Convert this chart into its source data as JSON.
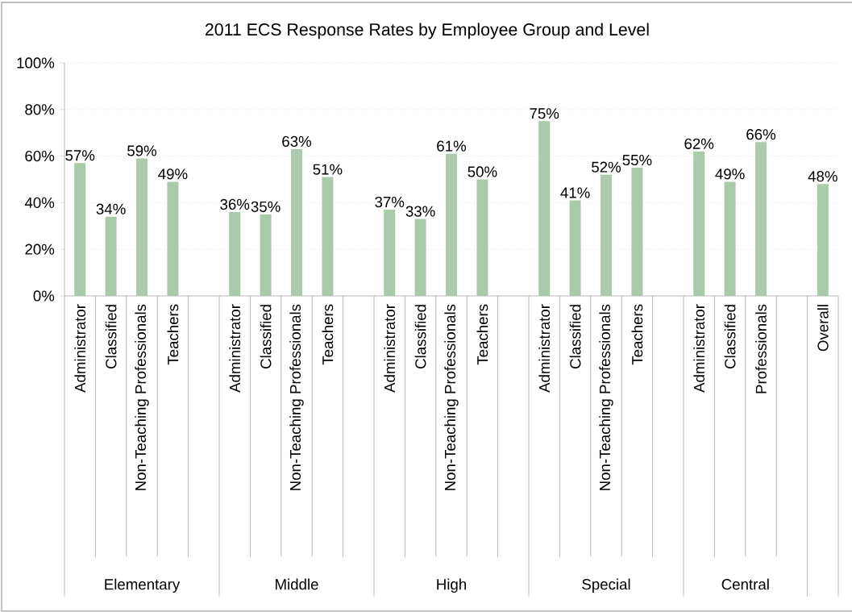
{
  "chart_data": {
    "type": "bar",
    "title": "2011 ECS Response Rates by Employee Group and Level",
    "categories": [
      "Administrator",
      "Classified",
      "Non-Teaching Professionals",
      "Teachers",
      null,
      "Administrator",
      "Classified",
      "Non-Teaching Professionals",
      "Teachers",
      null,
      "Administrator",
      "Classified",
      "Non-Teaching Professionals",
      "Teachers",
      null,
      "Administrator",
      "Classified",
      "Non-Teaching Professionals",
      "Teachers",
      null,
      "Administrator",
      "Classified",
      "Professionals",
      null,
      "Overall"
    ],
    "values": [
      57,
      34,
      59,
      49,
      null,
      36,
      35,
      63,
      51,
      null,
      37,
      33,
      61,
      50,
      null,
      75,
      41,
      52,
      55,
      null,
      62,
      49,
      66,
      null,
      48
    ],
    "value_labels": [
      "57%",
      "34%",
      "59%",
      "49%",
      null,
      "36%",
      "35%",
      "63%",
      "51%",
      null,
      "37%",
      "33%",
      "61%",
      "50%",
      null,
      "75%",
      "41%",
      "52%",
      "55%",
      null,
      "62%",
      "49%",
      "66%",
      null,
      "48%"
    ],
    "color": "#a9cba9",
    "ylim": [
      0,
      100
    ],
    "yticks": [
      {
        "value": 0,
        "label": "0%"
      },
      {
        "value": 20,
        "label": "20%"
      },
      {
        "value": 40,
        "label": "40%"
      },
      {
        "value": 60,
        "label": "60%"
      },
      {
        "value": 80,
        "label": "80%"
      },
      {
        "value": 100,
        "label": "100%"
      }
    ],
    "grid": "y",
    "annotations": [
      "Elementary",
      "Middle",
      "High",
      "Special",
      "Central"
    ]
  }
}
